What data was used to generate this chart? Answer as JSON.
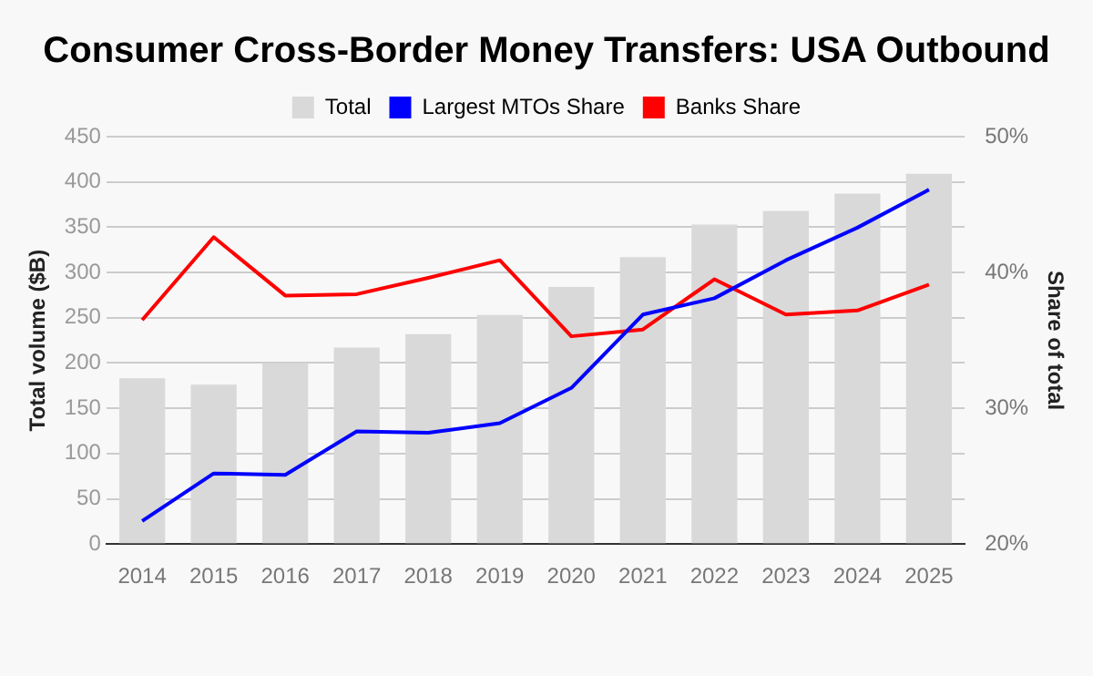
{
  "chart_data": {
    "type": "bar",
    "title": "Consumer Cross-Border Money Transfers: USA Outbound",
    "ylabel": "Total volume ($B)",
    "y2label": "Share of total",
    "categories": [
      "2014",
      "2015",
      "2016",
      "2017",
      "2018",
      "2019",
      "2020",
      "2021",
      "2022",
      "2023",
      "2024",
      "2025"
    ],
    "series": [
      {
        "name": "Total",
        "color": "#d9d9d9",
        "values": [
          183,
          176,
          200,
          217,
          232,
          253,
          284,
          317,
          353,
          368,
          387,
          409
        ]
      },
      {
        "name": "Largest MTOs Share",
        "type": "line",
        "axis": "y2",
        "color": "#0000ff",
        "values": [
          21.7,
          25.2,
          25.1,
          28.3,
          28.2,
          28.9,
          31.5,
          36.9,
          38.1,
          40.9,
          43.3,
          46.1
        ]
      },
      {
        "name": "Banks Share",
        "type": "line",
        "axis": "y2",
        "color": "#ff0000",
        "values": [
          36.5,
          42.6,
          38.3,
          38.4,
          39.6,
          40.9,
          35.3,
          35.8,
          39.5,
          36.9,
          37.2,
          39.1
        ]
      }
    ],
    "ylim": [
      0,
      450
    ],
    "yticks": [
      0,
      50,
      100,
      150,
      200,
      250,
      300,
      350,
      400,
      450
    ],
    "y2lim": [
      20,
      50
    ],
    "y2ticks": [
      {
        "value": 20,
        "label": "20%"
      },
      {
        "value": 30,
        "label": "30%"
      },
      {
        "value": 40,
        "label": "40%"
      },
      {
        "value": 50,
        "label": "50%"
      }
    ],
    "grid": true,
    "legend": "top",
    "marker": "none",
    "line_style": "solid"
  }
}
